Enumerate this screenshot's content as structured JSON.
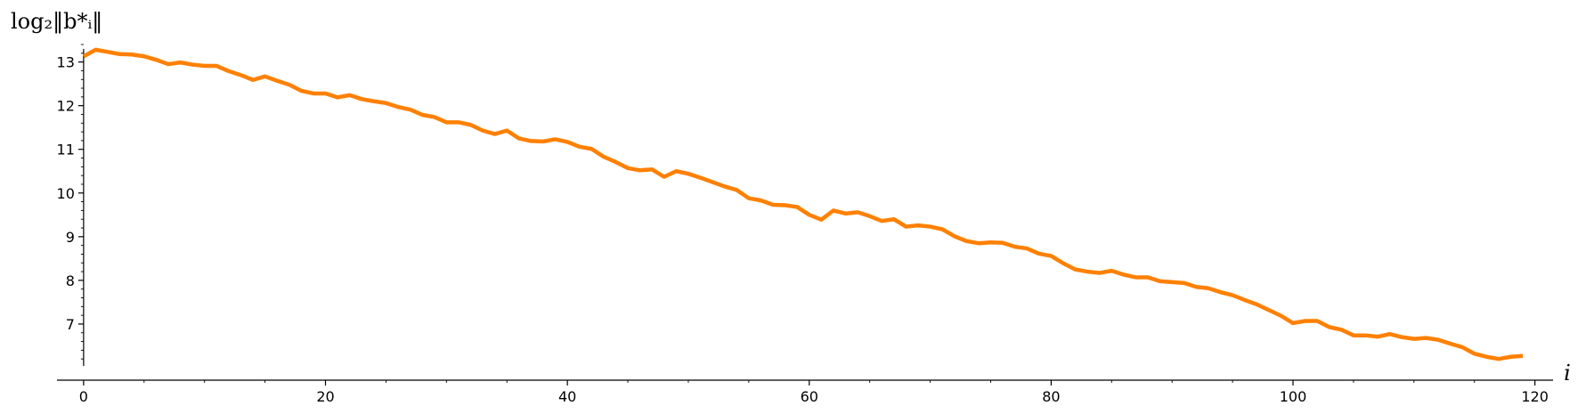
{
  "chart_data": {
    "type": "line",
    "title": "",
    "xlabel": "i",
    "ylabel": "log₂‖b*ᵢ‖",
    "xlim": [
      -2.2,
      121.5
    ],
    "ylim": [
      6.0,
      13.4
    ],
    "grid": false,
    "x_ticks": [
      0,
      20,
      40,
      60,
      80,
      100,
      120
    ],
    "y_ticks": [
      7,
      8,
      9,
      10,
      11,
      12,
      13
    ],
    "colors": {
      "line": "#ff8000",
      "axis": "#000000"
    },
    "series": [
      {
        "x_start": 0,
        "values": [
          13.13,
          13.28,
          13.23,
          13.18,
          13.17,
          13.13,
          13.05,
          12.95,
          12.99,
          12.94,
          12.91,
          12.91,
          12.79,
          12.7,
          12.59,
          12.67,
          12.57,
          12.48,
          12.34,
          12.28,
          12.28,
          12.19,
          12.24,
          12.15,
          12.1,
          12.06,
          11.97,
          11.91,
          11.79,
          11.74,
          11.62,
          11.62,
          11.56,
          11.43,
          11.35,
          11.43,
          11.25,
          11.19,
          11.18,
          11.23,
          11.17,
          11.06,
          11.01,
          10.83,
          10.71,
          10.57,
          10.52,
          10.54,
          10.37,
          10.5,
          10.44,
          10.35,
          10.25,
          10.15,
          10.07,
          9.88,
          9.83,
          9.73,
          9.72,
          9.68,
          9.5,
          9.39,
          9.6,
          9.53,
          9.56,
          9.47,
          9.36,
          9.4,
          9.23,
          9.26,
          9.23,
          9.17,
          9.01,
          8.9,
          8.85,
          8.87,
          8.86,
          8.77,
          8.73,
          8.61,
          8.56,
          8.39,
          8.25,
          8.2,
          8.17,
          8.22,
          8.13,
          8.07,
          8.07,
          7.98,
          7.96,
          7.94,
          7.85,
          7.82,
          7.73,
          7.66,
          7.55,
          7.45,
          7.32,
          7.19,
          7.02,
          7.07,
          7.07,
          6.93,
          6.87,
          6.74,
          6.74,
          6.71,
          6.77,
          6.7,
          6.66,
          6.68,
          6.64,
          6.55,
          6.47,
          6.32,
          6.25,
          6.2,
          6.25,
          6.27
        ]
      }
    ]
  }
}
